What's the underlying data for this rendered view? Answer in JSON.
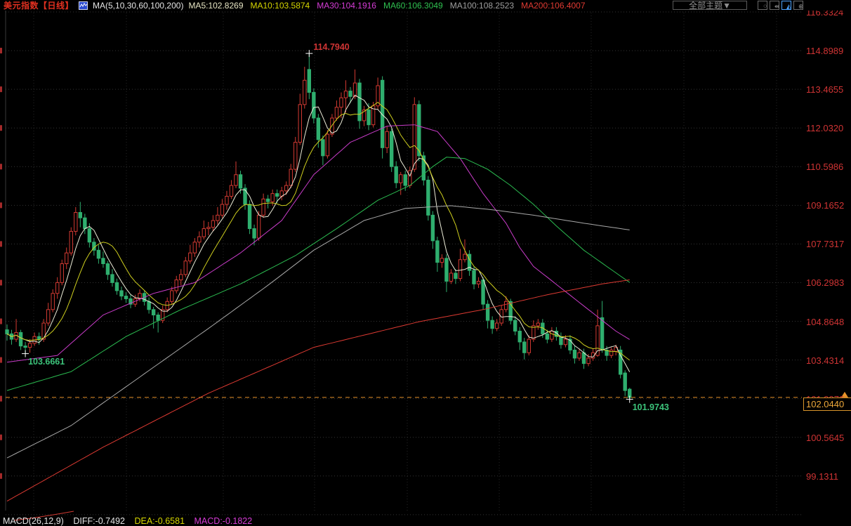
{
  "header": {
    "title": "美元指数【日线】",
    "title_color": "#e03020",
    "ma_param_label": "MA(5,10,30,60,100,200)",
    "ma_legend": [
      {
        "label": "MA5:102.8269",
        "color": "#e8e6c4"
      },
      {
        "label": "MA10:103.5874",
        "color": "#d6d600"
      },
      {
        "label": "MA30:104.1916",
        "color": "#d63cd6"
      },
      {
        "label": "MA60:106.3049",
        "color": "#2fc050"
      },
      {
        "label": "MA100:108.2523",
        "color": "#9e9e9e"
      },
      {
        "label": "MA200:106.4007",
        "color": "#e03a32"
      }
    ],
    "theme_button_label": "全部主题▼",
    "toolbar_icons": [
      {
        "name": "layout-grid-icon",
        "glyph": "⁘",
        "active": false
      },
      {
        "name": "scale-adjust-icon",
        "glyph": "⇹",
        "active": false
      },
      {
        "name": "chart-style-icon",
        "glyph": "◭",
        "active": true
      },
      {
        "name": "add-indicator-icon",
        "glyph": "⊕",
        "active": false
      }
    ]
  },
  "right_axis": {
    "color": "#d03434",
    "labels": [
      "116.3324",
      "114.8989",
      "113.4655",
      "112.0320",
      "110.5986",
      "109.1652",
      "107.7317",
      "106.2983",
      "104.8648",
      "103.4314",
      "101.9979",
      "100.5645",
      "99.1311"
    ],
    "hidden_behind_price_box": "101.9979"
  },
  "price_marker": {
    "label": "102.0440",
    "value": 102.044,
    "color": "#eda83a"
  },
  "annotations": [
    {
      "id": "high-label",
      "text": "114.7940",
      "color": "#d03434",
      "index": 66,
      "price": 114.794,
      "placement": "above-right"
    },
    {
      "id": "low-left-label",
      "text": "103.6661",
      "color": "#3cc37a",
      "index": 4,
      "price": 103.6661,
      "placement": "below-right"
    },
    {
      "id": "low-right-label",
      "text": "101.9743",
      "color": "#3cc37a",
      "index": 136,
      "price": 101.9743,
      "placement": "below-right"
    }
  ],
  "macd_bar": {
    "param": {
      "label": "MACD(26,12,9)",
      "color": "#e4e4e4"
    },
    "diff": {
      "label": "DIFF:-0.7492",
      "color": "#e4e4e4"
    },
    "dea": {
      "label": "DEA:-0.6581",
      "color": "#d6d600"
    },
    "macd": {
      "label": "MACD:-0.1822",
      "color": "#d63cd6"
    }
  },
  "chart_data": {
    "type": "candlestick",
    "title": "美元指数",
    "interval": "日线",
    "up_color": "#d23a32",
    "down_color": "#2fae6e",
    "grid": true,
    "y_axis": {
      "top_label": 116.3324,
      "bottom_label": 99.1311,
      "step": 1.43345,
      "side": "right"
    },
    "marked_high": 114.794,
    "marked_lows": [
      103.6661,
      101.9743
    ],
    "last_price": 102.044,
    "candles": [
      [
        104.55,
        104.75,
        104.15,
        104.4
      ],
      [
        104.4,
        104.55,
        104.0,
        104.2
      ],
      [
        104.2,
        104.95,
        104.1,
        104.45
      ],
      [
        104.45,
        104.55,
        103.8,
        103.95
      ],
      [
        103.95,
        104.1,
        103.6661,
        103.9
      ],
      [
        103.9,
        104.2,
        103.7,
        104.05
      ],
      [
        104.05,
        104.45,
        103.95,
        104.3
      ],
      [
        104.3,
        104.45,
        104.0,
        104.2
      ],
      [
        104.2,
        104.95,
        104.1,
        104.8
      ],
      [
        104.8,
        105.55,
        104.7,
        105.3
      ],
      [
        105.3,
        106.05,
        105.2,
        105.9
      ],
      [
        105.9,
        106.5,
        105.7,
        106.3
      ],
      [
        106.3,
        107.15,
        106.2,
        107.0
      ],
      [
        107.0,
        107.6,
        106.8,
        107.4
      ],
      [
        107.4,
        108.35,
        107.3,
        108.2
      ],
      [
        108.2,
        109.1,
        108.05,
        108.9
      ],
      [
        108.9,
        109.29,
        108.35,
        108.7
      ],
      [
        108.7,
        108.85,
        108.1,
        108.3
      ],
      [
        108.3,
        108.5,
        107.6,
        107.8
      ],
      [
        107.8,
        107.95,
        107.3,
        107.5
      ],
      [
        107.5,
        107.7,
        107.0,
        107.2
      ],
      [
        107.2,
        107.45,
        106.85,
        107.0
      ],
      [
        107.0,
        107.1,
        106.4,
        106.6
      ],
      [
        106.6,
        106.8,
        106.15,
        106.3
      ],
      [
        106.3,
        106.45,
        105.85,
        106.0
      ],
      [
        106.0,
        106.15,
        105.65,
        105.8
      ],
      [
        105.8,
        105.95,
        105.55,
        105.7
      ],
      [
        105.7,
        105.85,
        105.35,
        105.5
      ],
      [
        105.5,
        105.85,
        105.4,
        105.7
      ],
      [
        105.7,
        106.05,
        105.6,
        105.9
      ],
      [
        105.9,
        106.0,
        105.45,
        105.6
      ],
      [
        105.6,
        105.75,
        105.15,
        105.3
      ],
      [
        105.3,
        105.4,
        104.6,
        105.1
      ],
      [
        105.1,
        105.2,
        104.45,
        104.9
      ],
      [
        104.9,
        105.45,
        104.8,
        105.3
      ],
      [
        105.3,
        105.75,
        105.2,
        105.6
      ],
      [
        105.6,
        106.15,
        105.5,
        106.0
      ],
      [
        106.0,
        106.55,
        105.9,
        106.4
      ],
      [
        106.4,
        106.8,
        106.2,
        106.6
      ],
      [
        106.6,
        107.25,
        106.5,
        107.1
      ],
      [
        107.1,
        107.7,
        107.0,
        107.4
      ],
      [
        107.4,
        107.95,
        107.25,
        107.8
      ],
      [
        107.8,
        108.2,
        107.6,
        108.0
      ],
      [
        108.0,
        108.6,
        107.9,
        108.3
      ],
      [
        108.3,
        108.55,
        108.05,
        108.35
      ],
      [
        108.35,
        108.8,
        108.2,
        108.6
      ],
      [
        108.6,
        109.1,
        108.45,
        108.8
      ],
      [
        108.8,
        109.4,
        108.7,
        109.2
      ],
      [
        109.2,
        109.7,
        109.0,
        109.5
      ],
      [
        109.5,
        110.1,
        109.4,
        109.9
      ],
      [
        109.9,
        110.79,
        109.8,
        110.3
      ],
      [
        110.3,
        110.45,
        109.6,
        109.8
      ],
      [
        109.8,
        109.95,
        109.0,
        109.2
      ],
      [
        109.2,
        109.35,
        108.1,
        108.3
      ],
      [
        108.3,
        108.45,
        107.68,
        107.95
      ],
      [
        107.95,
        108.95,
        107.85,
        108.8
      ],
      [
        108.8,
        109.6,
        108.7,
        109.4
      ],
      [
        109.4,
        109.55,
        109.05,
        109.3
      ],
      [
        109.3,
        109.75,
        109.15,
        109.6
      ],
      [
        109.6,
        109.75,
        109.25,
        109.5
      ],
      [
        109.5,
        109.85,
        109.35,
        109.7
      ],
      [
        109.7,
        110.05,
        109.55,
        109.9
      ],
      [
        109.9,
        110.7,
        109.8,
        110.5
      ],
      [
        110.5,
        111.7,
        110.4,
        111.5
      ],
      [
        111.5,
        113.3,
        111.4,
        112.9
      ],
      [
        112.9,
        114.3,
        112.75,
        113.8
      ],
      [
        114.2,
        114.794,
        113.1,
        113.35
      ],
      [
        113.35,
        113.5,
        112.2,
        112.4
      ],
      [
        112.4,
        112.55,
        111.3,
        111.6
      ],
      [
        111.6,
        111.75,
        110.65,
        111.0
      ],
      [
        111.0,
        111.95,
        110.9,
        111.8
      ],
      [
        111.8,
        112.55,
        111.7,
        112.4
      ],
      [
        112.4,
        113.05,
        112.3,
        112.8
      ],
      [
        112.8,
        113.35,
        112.4,
        113.15
      ],
      [
        113.15,
        113.8,
        112.6,
        113.4
      ],
      [
        113.4,
        113.55,
        112.95,
        113.2
      ],
      [
        113.2,
        114.2,
        113.1,
        113.7
      ],
      [
        113.7,
        113.85,
        112.0,
        112.3
      ],
      [
        112.3,
        112.85,
        112.1,
        112.7
      ],
      [
        112.7,
        112.95,
        111.95,
        112.15
      ],
      [
        112.15,
        113.0,
        112.05,
        112.85
      ],
      [
        112.85,
        113.9,
        112.7,
        113.6
      ],
      [
        113.8,
        113.95,
        110.9,
        111.3
      ],
      [
        111.3,
        112.1,
        111.1,
        111.9
      ],
      [
        111.9,
        112.0,
        110.4,
        110.6
      ],
      [
        110.6,
        110.8,
        109.8,
        110.0
      ],
      [
        110.0,
        110.4,
        109.55,
        110.3
      ],
      [
        110.3,
        110.45,
        109.7,
        109.9
      ],
      [
        109.9,
        110.6,
        109.8,
        110.45
      ],
      [
        110.5,
        113.17,
        110.4,
        112.9
      ],
      [
        112.9,
        113.05,
        110.8,
        111.0
      ],
      [
        111.0,
        111.15,
        109.9,
        110.1
      ],
      [
        110.1,
        110.25,
        108.6,
        108.8
      ],
      [
        108.8,
        108.95,
        107.55,
        107.85
      ],
      [
        107.85,
        108.0,
        106.7,
        107.05
      ],
      [
        107.05,
        107.35,
        106.85,
        107.2
      ],
      [
        107.2,
        107.35,
        105.95,
        106.35
      ],
      [
        106.35,
        106.8,
        106.25,
        106.65
      ],
      [
        106.65,
        106.8,
        106.25,
        106.45
      ],
      [
        106.45,
        107.55,
        106.35,
        107.15
      ],
      [
        107.15,
        107.9,
        107.05,
        107.35
      ],
      [
        107.35,
        107.5,
        106.55,
        106.75
      ],
      [
        106.75,
        106.9,
        106.05,
        106.25
      ],
      [
        106.25,
        106.5,
        106.1,
        106.35
      ],
      [
        106.4,
        106.5,
        105.3,
        105.5
      ],
      [
        105.5,
        105.65,
        104.6,
        104.9
      ],
      [
        104.9,
        105.05,
        104.4,
        104.6
      ],
      [
        104.6,
        104.95,
        104.5,
        104.8
      ],
      [
        104.8,
        105.45,
        104.7,
        105.3
      ],
      [
        105.3,
        105.8,
        105.2,
        105.6
      ],
      [
        105.6,
        105.7,
        104.75,
        104.9
      ],
      [
        104.9,
        105.05,
        104.35,
        104.5
      ],
      [
        104.5,
        104.65,
        103.8,
        104.1
      ],
      [
        104.1,
        104.25,
        103.45,
        103.7
      ],
      [
        103.7,
        104.35,
        103.6,
        104.2
      ],
      [
        104.2,
        104.9,
        104.1,
        104.7
      ],
      [
        104.7,
        104.95,
        104.55,
        104.8
      ],
      [
        104.8,
        104.95,
        104.25,
        104.4
      ],
      [
        104.4,
        104.55,
        104.05,
        104.2
      ],
      [
        104.2,
        104.65,
        104.1,
        104.5
      ],
      [
        104.5,
        104.65,
        104.15,
        104.3
      ],
      [
        104.3,
        104.45,
        103.85,
        104.0
      ],
      [
        104.0,
        104.35,
        103.9,
        104.2
      ],
      [
        104.2,
        104.35,
        103.65,
        103.8
      ],
      [
        103.8,
        103.95,
        103.3,
        103.5
      ],
      [
        103.5,
        103.85,
        103.4,
        103.7
      ],
      [
        103.7,
        103.85,
        103.1,
        103.3
      ],
      [
        103.3,
        103.65,
        103.2,
        103.5
      ],
      [
        103.5,
        103.85,
        103.4,
        103.7
      ],
      [
        103.6,
        105.3,
        103.55,
        104.7
      ],
      [
        105.0,
        105.62,
        103.7,
        103.8
      ],
      [
        103.8,
        103.95,
        103.4,
        103.6
      ],
      [
        103.6,
        103.9,
        103.5,
        103.8
      ],
      [
        103.75,
        104.0,
        103.6,
        103.9
      ],
      [
        103.8,
        103.95,
        102.75,
        102.9
      ],
      [
        102.95,
        103.05,
        102.1,
        102.3
      ],
      [
        102.35,
        102.4,
        101.9743,
        102.044
      ]
    ],
    "moving_averages": [
      {
        "name": "MA5",
        "color": "#ececd8",
        "period": 5,
        "last": 102.8269
      },
      {
        "name": "MA10",
        "color": "#cfcf1e",
        "period": 10,
        "last": 103.5874
      },
      {
        "name": "MA30",
        "color": "#c93cc9",
        "last": 104.1916,
        "points": [
          [
            0,
            103.35
          ],
          [
            11,
            103.6
          ],
          [
            21,
            105.1
          ],
          [
            32,
            105.9
          ],
          [
            41,
            106.3
          ],
          [
            51,
            107.4
          ],
          [
            60,
            108.6
          ],
          [
            67,
            110.3
          ],
          [
            75,
            111.5
          ],
          [
            83,
            112.1
          ],
          [
            89,
            112.15
          ],
          [
            94,
            111.9
          ],
          [
            99,
            110.9
          ],
          [
            104,
            109.6
          ],
          [
            109,
            108.5
          ],
          [
            112,
            107.6
          ],
          [
            115,
            106.9
          ],
          [
            118,
            106.5
          ],
          [
            121,
            106.1
          ],
          [
            124,
            105.7
          ],
          [
            127,
            105.3
          ],
          [
            130,
            104.9
          ],
          [
            133,
            104.5
          ],
          [
            136,
            104.1916
          ]
        ]
      },
      {
        "name": "MA60",
        "color": "#2bbb50",
        "last": 106.3049,
        "points": [
          [
            0,
            102.3
          ],
          [
            14,
            103.0
          ],
          [
            26,
            104.3
          ],
          [
            38,
            105.3
          ],
          [
            51,
            106.25
          ],
          [
            63,
            107.3
          ],
          [
            72,
            108.3
          ],
          [
            81,
            109.35
          ],
          [
            88,
            109.9
          ],
          [
            93,
            110.6
          ],
          [
            96,
            110.95
          ],
          [
            100,
            110.9
          ],
          [
            105,
            110.5
          ],
          [
            110,
            109.9
          ],
          [
            115,
            109.2
          ],
          [
            120,
            108.4
          ],
          [
            126,
            107.5
          ],
          [
            131,
            106.9
          ],
          [
            136,
            106.3049
          ]
        ]
      },
      {
        "name": "MA100",
        "color": "#a8a8a8",
        "last": 108.2523,
        "points": [
          [
            0,
            99.8
          ],
          [
            14,
            101.0
          ],
          [
            29,
            102.8
          ],
          [
            44,
            104.6
          ],
          [
            57,
            106.2
          ],
          [
            67,
            107.5
          ],
          [
            78,
            108.6
          ],
          [
            87,
            109.05
          ],
          [
            97,
            109.15
          ],
          [
            106,
            109.0
          ],
          [
            115,
            108.8
          ],
          [
            126,
            108.5
          ],
          [
            136,
            108.2523
          ]
        ]
      },
      {
        "name": "MA200",
        "color": "#dd3a32",
        "last": 106.4007,
        "points": [
          [
            0,
            98.2
          ],
          [
            21,
            100.2
          ],
          [
            44,
            102.2
          ],
          [
            67,
            103.9
          ],
          [
            90,
            104.85
          ],
          [
            104,
            105.3
          ],
          [
            118,
            105.85
          ],
          [
            130,
            106.25
          ],
          [
            136,
            106.4007
          ]
        ]
      }
    ]
  }
}
